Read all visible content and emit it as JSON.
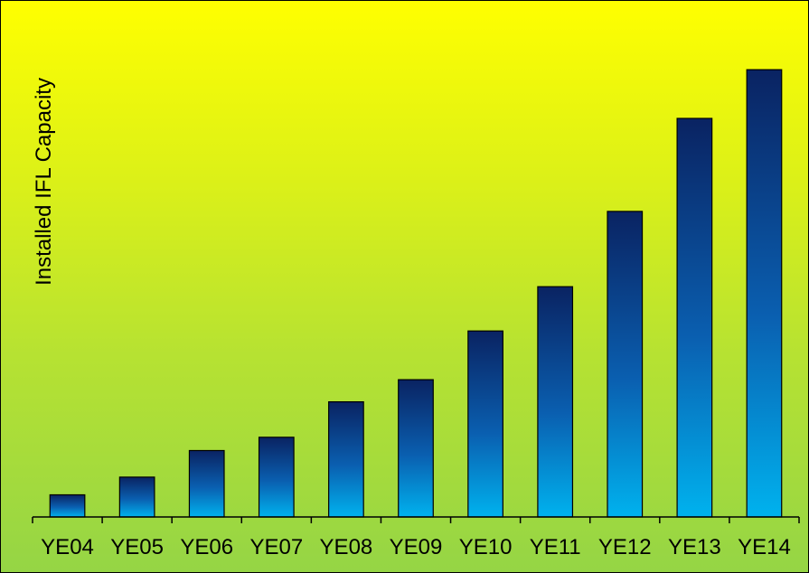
{
  "chart_data": {
    "type": "bar",
    "title": "",
    "xlabel": "",
    "ylabel": "Installed IFL Capacity",
    "categories": [
      "YE04",
      "YE05",
      "YE06",
      "YE07",
      "YE08",
      "YE09",
      "YE10",
      "YE11",
      "YE12",
      "YE13",
      "YE14"
    ],
    "values": [
      5,
      9,
      15,
      18,
      26,
      31,
      42,
      52,
      69,
      90,
      101
    ],
    "ylim": [
      0,
      110
    ],
    "grid": false,
    "legend": "none",
    "colors": {
      "bar_top": "#0a2362",
      "bar_mid": "#0a5fb0",
      "bar_bottom": "#00b2ee",
      "background_top": "#ffff00",
      "background_bottom": "#95d545"
    }
  }
}
